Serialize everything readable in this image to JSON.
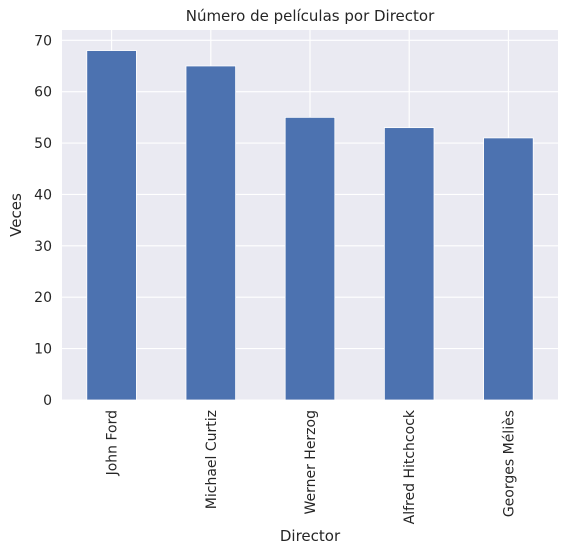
{
  "chart_data": {
    "type": "bar",
    "title": "Número de películas por Director",
    "xlabel": "Director",
    "ylabel": "Veces",
    "categories": [
      "John Ford",
      "Michael Curtiz",
      "Werner Herzog",
      "Alfred Hitchcock",
      "Georges Méliès"
    ],
    "values": [
      68,
      65,
      55,
      53,
      51
    ],
    "ylim": [
      0,
      72
    ],
    "yticks": [
      "0",
      "10",
      "20",
      "30",
      "40",
      "50",
      "60",
      "70"
    ],
    "grid": true,
    "bar_color": "#4c72b0",
    "background_color": "#eaeaf2",
    "grid_color": "#ffffff"
  }
}
